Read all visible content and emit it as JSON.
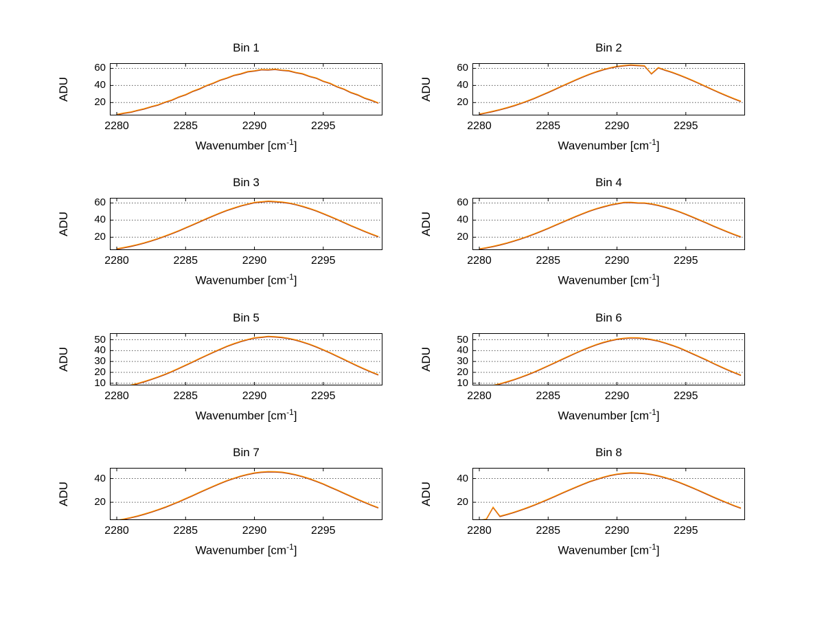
{
  "page": {
    "background": "#ffffff"
  },
  "style": {
    "line_color": "#ff9000",
    "line_shadow_color": "#a83c1e",
    "grid_color": "#555555",
    "axis_color": "#000000"
  },
  "labels": {
    "ylabel": "ADU",
    "xlabel_prefix": "Wavenumber [cm",
    "xlabel_sup": "-1",
    "xlabel_suffix": "]"
  },
  "x_shared": [
    2280,
    2280.5,
    2281,
    2281.5,
    2282,
    2282.5,
    2283,
    2283.5,
    2284,
    2284.5,
    2285,
    2285.5,
    2286,
    2286.5,
    2287,
    2287.5,
    2288,
    2288.5,
    2289,
    2289.5,
    2290,
    2290.5,
    2291,
    2291.5,
    2292,
    2292.5,
    2293,
    2293.5,
    2294,
    2294.5,
    2295,
    2295.5,
    2296,
    2296.5,
    2297,
    2297.5,
    2298,
    2298.5,
    2299
  ],
  "xticks": [
    2280,
    2285,
    2290,
    2295
  ],
  "xlim": [
    2279.5,
    2299.3
  ],
  "chart_data": [
    {
      "type": "line",
      "title": "Bin 1",
      "ylabel": "ADU",
      "xlabel": "Wavenumber [cm^-1]",
      "yticks": [
        20,
        40,
        60
      ],
      "ylim": [
        5,
        66
      ],
      "values": [
        6.3,
        7.9,
        9.1,
        11.2,
        13.0,
        15.5,
        17.6,
        20.7,
        23.2,
        26.8,
        29.6,
        33.3,
        36.3,
        40.1,
        43.0,
        46.5,
        49.0,
        52.1,
        53.9,
        56.4,
        57.3,
        58.8,
        58.6,
        59.2,
        58.1,
        57.5,
        55.4,
        54.0,
        51.0,
        48.9,
        45.3,
        42.8,
        38.9,
        36.1,
        32.1,
        29.4,
        25.6,
        23.0,
        19.8
      ]
    },
    {
      "type": "line",
      "title": "Bin 2",
      "ylabel": "ADU",
      "xlabel": "Wavenumber [cm^-1]",
      "yticks": [
        20,
        40,
        60
      ],
      "ylim": [
        5,
        66
      ],
      "values": [
        6.8,
        8.4,
        10.1,
        12.1,
        14.2,
        16.6,
        19.3,
        22.2,
        25.3,
        28.8,
        32.3,
        35.9,
        39.6,
        43.2,
        46.8,
        50.2,
        53.4,
        56.3,
        58.8,
        60.9,
        62.5,
        63.5,
        64.2,
        63.7,
        63.3,
        54.0,
        61.0,
        58.2,
        55.7,
        52.7,
        49.5,
        46.1,
        42.5,
        38.8,
        35.1,
        31.6,
        28.1,
        24.8,
        21.7
      ]
    },
    {
      "type": "line",
      "title": "Bin 3",
      "ylabel": "ADU",
      "xlabel": "Wavenumber [cm^-1]",
      "yticks": [
        20,
        40,
        60
      ],
      "ylim": [
        5,
        66
      ],
      "values": [
        6.6,
        8.1,
        9.7,
        11.6,
        13.7,
        16.1,
        18.7,
        21.6,
        24.6,
        27.9,
        31.3,
        34.8,
        38.3,
        41.9,
        45.3,
        48.6,
        51.7,
        54.4,
        56.9,
        58.9,
        60.8,
        61.6,
        62.4,
        61.9,
        61.3,
        60.2,
        58.5,
        56.4,
        53.9,
        51.1,
        47.9,
        44.6,
        41.2,
        37.6,
        34.0,
        30.6,
        27.2,
        24.0,
        21.0
      ]
    },
    {
      "type": "line",
      "title": "Bin 4",
      "ylabel": "ADU",
      "xlabel": "Wavenumber [cm^-1]",
      "yticks": [
        20,
        40,
        60
      ],
      "ylim": [
        5,
        66
      ],
      "values": [
        6.5,
        8.0,
        9.6,
        11.4,
        13.5,
        15.9,
        18.4,
        21.2,
        24.2,
        27.5,
        30.8,
        34.2,
        37.7,
        41.2,
        44.6,
        47.8,
        50.9,
        53.6,
        55.9,
        58.0,
        59.5,
        60.9,
        61.0,
        60.4,
        60.3,
        59.2,
        57.6,
        55.5,
        53.1,
        50.3,
        47.2,
        43.9,
        40.5,
        37.0,
        33.5,
        30.1,
        26.8,
        23.6,
        20.7
      ]
    },
    {
      "type": "line",
      "title": "Bin 5",
      "ylabel": "ADU",
      "xlabel": "Wavenumber [cm^-1]",
      "yticks": [
        10,
        20,
        30,
        40,
        50
      ],
      "ylim": [
        8,
        56
      ],
      "values": [
        5.7,
        6.9,
        8.3,
        9.9,
        11.7,
        13.8,
        16.0,
        18.4,
        21.0,
        23.9,
        26.8,
        29.7,
        32.8,
        35.8,
        38.7,
        41.5,
        44.2,
        46.5,
        48.6,
        50.4,
        51.9,
        52.5,
        53.3,
        52.9,
        52.4,
        51.4,
        50.0,
        48.2,
        46.1,
        43.7,
        41.0,
        38.2,
        35.2,
        32.2,
        29.1,
        26.1,
        23.3,
        20.5,
        18.0
      ]
    },
    {
      "type": "line",
      "title": "Bin 6",
      "ylabel": "ADU",
      "xlabel": "Wavenumber [cm^-1]",
      "yticks": [
        10,
        20,
        30,
        40,
        50
      ],
      "ylim": [
        8,
        56
      ],
      "values": [
        5.6,
        6.8,
        8.2,
        9.7,
        11.5,
        13.5,
        15.7,
        18.1,
        20.6,
        23.4,
        26.3,
        29.2,
        32.2,
        35.1,
        38.0,
        40.8,
        43.4,
        45.7,
        47.7,
        49.4,
        50.7,
        51.5,
        52.0,
        51.9,
        51.4,
        50.4,
        49.1,
        47.3,
        45.2,
        42.9,
        40.2,
        37.4,
        34.5,
        31.6,
        28.5,
        25.6,
        22.8,
        20.1,
        17.6
      ]
    },
    {
      "type": "line",
      "title": "Bin 7",
      "ylabel": "ADU",
      "xlabel": "Wavenumber [cm^-1]",
      "yticks": [
        20,
        40
      ],
      "ylim": [
        5,
        49
      ],
      "values": [
        4.9,
        6.0,
        7.2,
        8.6,
        10.2,
        12.0,
        13.9,
        16.0,
        18.3,
        20.7,
        23.3,
        25.8,
        28.5,
        31.1,
        33.6,
        36.1,
        38.4,
        40.4,
        42.2,
        43.7,
        44.9,
        45.6,
        46.0,
        45.9,
        45.5,
        44.6,
        43.4,
        41.9,
        40.0,
        37.9,
        35.6,
        33.1,
        30.6,
        27.9,
        25.3,
        22.7,
        20.2,
        17.8,
        15.6
      ]
    },
    {
      "type": "line",
      "title": "Bin 8",
      "ylabel": "ADU",
      "xlabel": "Wavenumber [cm^-1]",
      "yticks": [
        20,
        40
      ],
      "ylim": [
        5,
        49
      ],
      "values": [
        4.8,
        5.9,
        16.0,
        8.4,
        10.0,
        11.7,
        13.6,
        15.7,
        17.9,
        20.3,
        22.8,
        25.3,
        27.9,
        30.4,
        32.9,
        35.3,
        37.6,
        39.5,
        41.3,
        42.8,
        43.9,
        44.6,
        45.0,
        44.9,
        44.5,
        43.7,
        42.5,
        41.0,
        39.2,
        37.1,
        34.8,
        32.4,
        29.9,
        27.3,
        24.7,
        22.2,
        19.8,
        17.4,
        15.3
      ]
    }
  ]
}
